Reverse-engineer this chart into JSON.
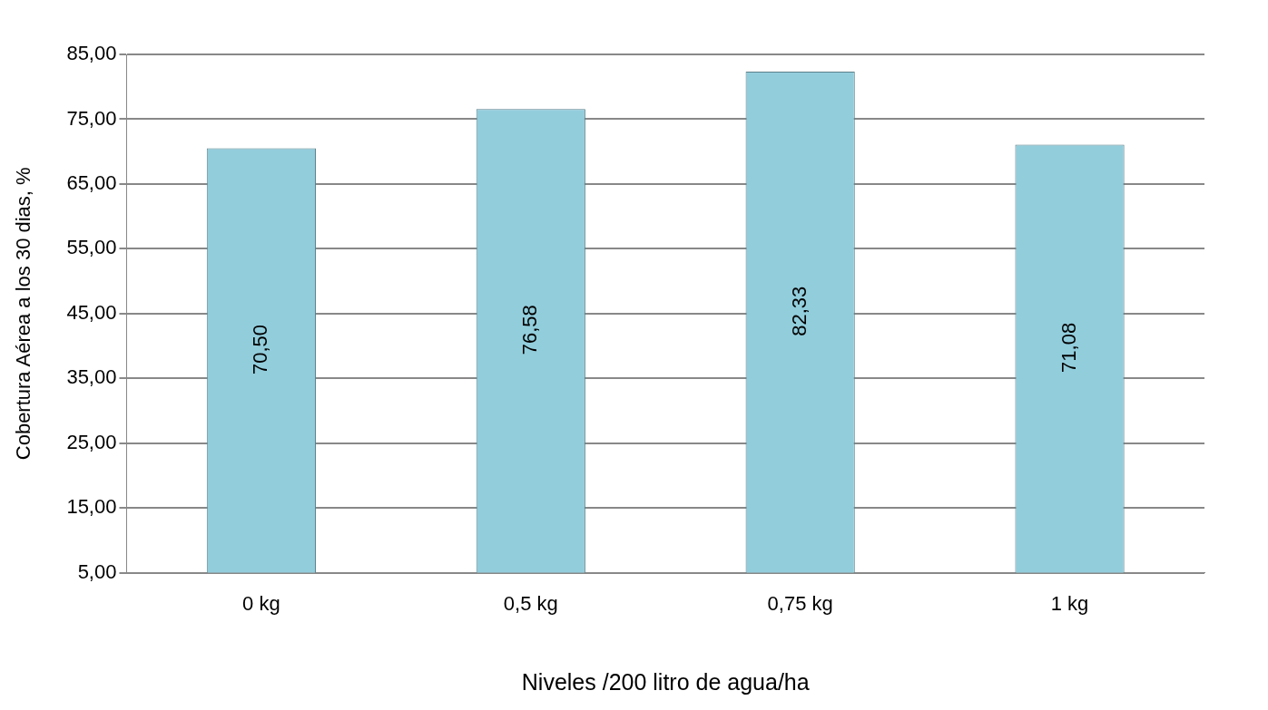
{
  "chart_data": {
    "type": "bar",
    "xlabel": "Niveles /200 litro de agua/ha",
    "ylabel": "Cobertura Aérea a los 30 dias, %",
    "categories": [
      "0 kg",
      "0,5 kg",
      "0,75 kg",
      "1 kg"
    ],
    "values": [
      70.5,
      76.58,
      82.33,
      71.08
    ],
    "value_labels": [
      "70,50",
      "76,58",
      "82,33",
      "71,08"
    ],
    "color": "#92cddc",
    "ylim": [
      5,
      85
    ],
    "yticks": [
      {
        "value": 5,
        "label": "5,00"
      },
      {
        "value": 15,
        "label": "15,00"
      },
      {
        "value": 25,
        "label": "25,00"
      },
      {
        "value": 35,
        "label": "35,00"
      },
      {
        "value": 45,
        "label": "45,00"
      },
      {
        "value": 55,
        "label": "55,00"
      },
      {
        "value": 65,
        "label": "65,00"
      },
      {
        "value": 75,
        "label": "75,00"
      },
      {
        "value": 85,
        "label": "85,00"
      }
    ],
    "grid": "y",
    "legend": false
  }
}
